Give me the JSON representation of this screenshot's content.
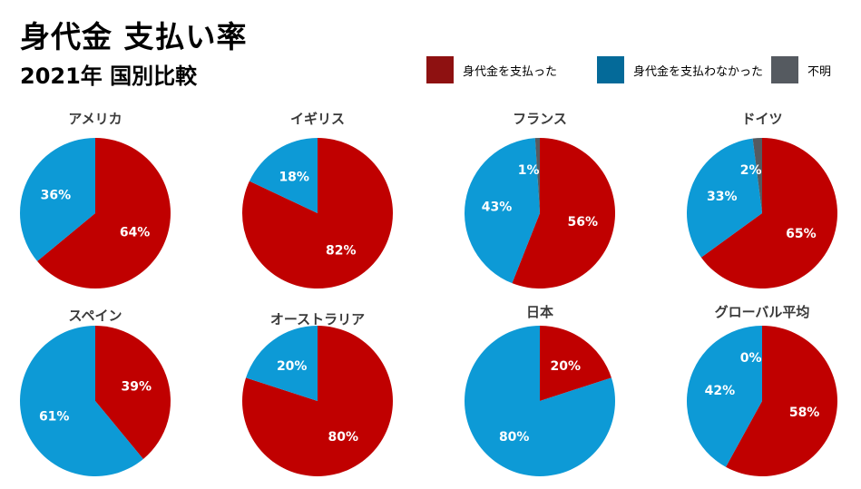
{
  "header": {
    "title": "身代金 支払い率",
    "subtitle": "2021年 国別比較"
  },
  "legend": [
    {
      "label": "身代金を支払った",
      "color": "#8e1111"
    },
    {
      "label": "身代金を支払わなかった",
      "color": "#046a99"
    },
    {
      "label": "不明",
      "color": "#555a60"
    }
  ],
  "chart_data": {
    "type": "pie",
    "series_names": [
      "身代金を支払った",
      "身代金を支払わなかった",
      "不明"
    ],
    "slice_colors": [
      "#c00000",
      "#0d9ad6",
      "#555a60"
    ],
    "pies": [
      {
        "title": "アメリカ",
        "values": [
          64,
          36,
          0
        ],
        "labels": [
          "64%",
          "36%",
          ""
        ]
      },
      {
        "title": "イギリス",
        "values": [
          82,
          18,
          0
        ],
        "labels": [
          "82%",
          "18%",
          ""
        ]
      },
      {
        "title": "フランス",
        "values": [
          56,
          43,
          1
        ],
        "labels": [
          "56%",
          "43%",
          "1%"
        ]
      },
      {
        "title": "ドイツ",
        "values": [
          65,
          33,
          2
        ],
        "labels": [
          "65%",
          "33%",
          "2%"
        ]
      },
      {
        "title": "スペイン",
        "values": [
          39,
          61,
          0
        ],
        "labels": [
          "39%",
          "61%",
          ""
        ]
      },
      {
        "title": "オーストラリア",
        "values": [
          80,
          20,
          0
        ],
        "labels": [
          "80%",
          "20%",
          ""
        ]
      },
      {
        "title": "日本",
        "values": [
          20,
          80,
          0
        ],
        "labels": [
          "20%",
          "80%",
          ""
        ]
      },
      {
        "title": "グローバル平均",
        "values": [
          58,
          42,
          0
        ],
        "labels": [
          "58%",
          "42%",
          "0%"
        ]
      }
    ]
  }
}
